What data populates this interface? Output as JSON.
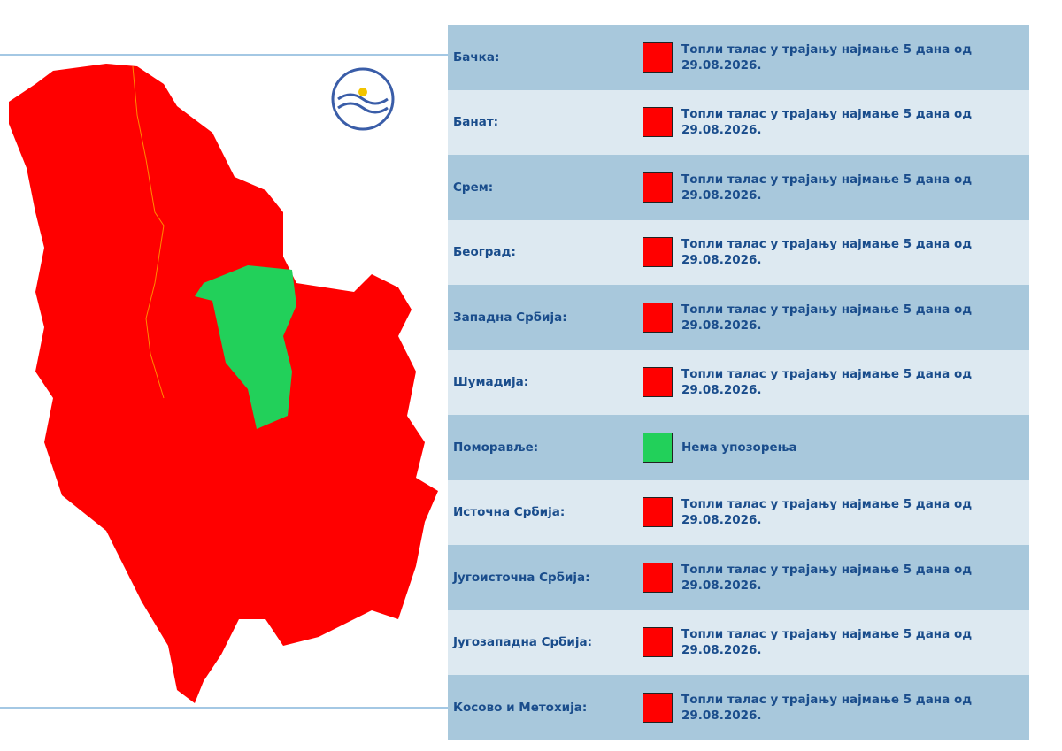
{
  "regions": [
    {
      "name": "Бачка:",
      "color": "#ff0000",
      "text": "Топли талас у трајању најмање 5 дана од 29.08.2026."
    },
    {
      "name": "Банат:",
      "color": "#ff0000",
      "text": "Топли талас у трајању најмање 5 дана од 29.08.2026."
    },
    {
      "name": "Срем:",
      "color": "#ff0000",
      "text": "Топли талас у трајању најмање 5 дана од 29.08.2026."
    },
    {
      "name": "Београд:",
      "color": "#ff0000",
      "text": "Топли талас у трајању најмање 5 дана од 29.08.2026."
    },
    {
      "name": "Западна Србија:",
      "color": "#ff0000",
      "text": "Топли талас у трајању најмање 5 дана од 29.08.2026."
    },
    {
      "name": "Шумадија:",
      "color": "#ff0000",
      "text": "Топли талас у трајању најмање 5 дана од 29.08.2026."
    },
    {
      "name": "Поморавље:",
      "color": "#22d05a",
      "text": "Нема упозорења"
    },
    {
      "name": "Источна Србија:",
      "color": "#ff0000",
      "text": "Топли талас у трајању најмање 5 дана од 29.08.2026."
    },
    {
      "name": "Југоисточна Србија:",
      "color": "#ff0000",
      "text": "Топли талас у трајању најмање 5 дана од 29.08.2026."
    },
    {
      "name": "Југозападна Србија:",
      "color": "#ff0000",
      "text": "Топли талас у трајању најмање 5 дана од 29.08.2026."
    },
    {
      "name": "Косово и Метохија:",
      "color": "#ff0000",
      "text": "Топли талас у трајању најмање 5 дана од 29.08.2026."
    }
  ]
}
